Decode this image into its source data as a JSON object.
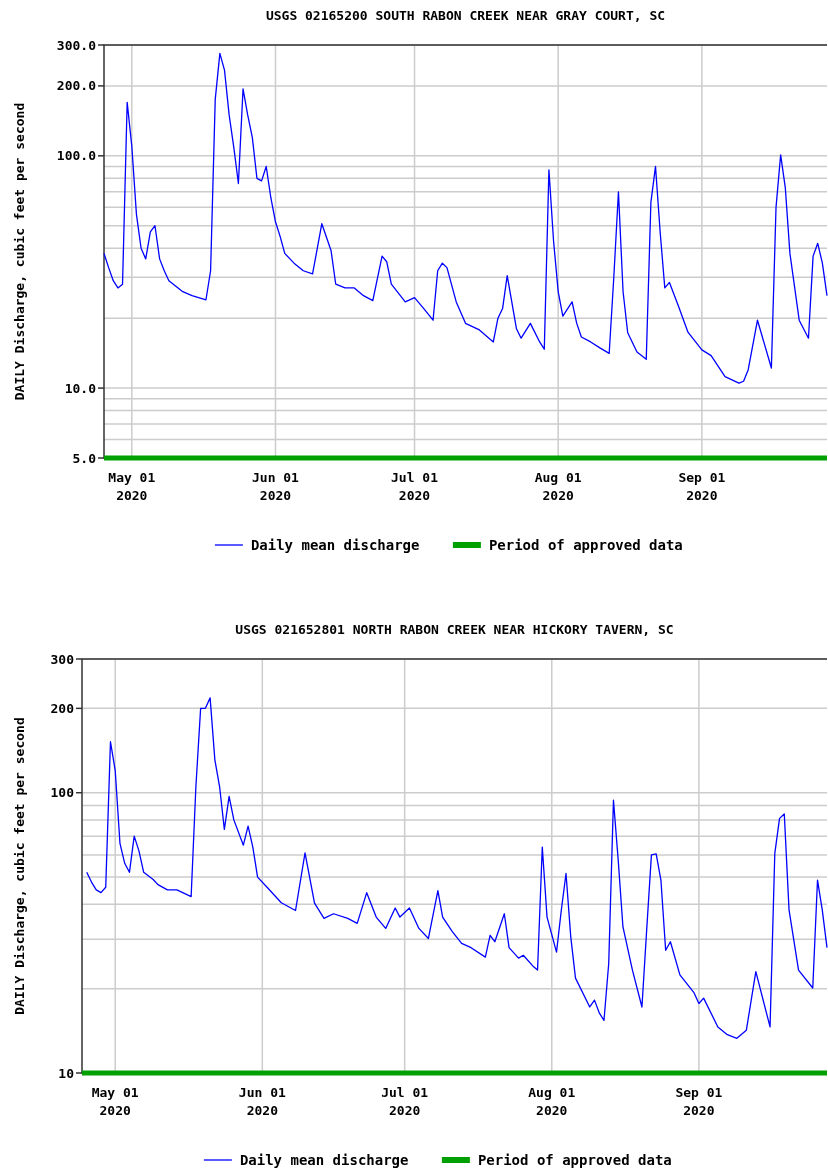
{
  "chart_data": [
    {
      "type": "line",
      "title": "USGS 02165200 SOUTH RABON CREEK NEAR GRAY COURT, SC",
      "ylabel": "DAILY Discharge, cubic feet per second",
      "log": true,
      "grid": true,
      "legend": "bottom",
      "marker": "none",
      "line_style": "solid",
      "xlim": [
        "2020-04-25",
        "2020-09-28"
      ],
      "ylim": [
        5,
        300
      ],
      "xticks": [
        {
          "value": "2020-05-01",
          "label": "May 01\n2020"
        },
        {
          "value": "2020-06-01",
          "label": "Jun 01\n2020"
        },
        {
          "value": "2020-07-01",
          "label": "Jul 01\n2020"
        },
        {
          "value": "2020-08-01",
          "label": "Aug 01\n2020"
        },
        {
          "value": "2020-09-01",
          "label": "Sep 01\n2020"
        }
      ],
      "yticks": [
        {
          "value": 5,
          "label": "5.0"
        },
        {
          "value": 6,
          "label": null
        },
        {
          "value": 7,
          "label": null
        },
        {
          "value": 8,
          "label": null
        },
        {
          "value": 9,
          "label": null
        },
        {
          "value": 10,
          "label": "10.0"
        },
        {
          "value": 20,
          "label": null
        },
        {
          "value": 30,
          "label": null
        },
        {
          "value": 40,
          "label": null
        },
        {
          "value": 50,
          "label": null
        },
        {
          "value": 60,
          "label": null
        },
        {
          "value": 70,
          "label": null
        },
        {
          "value": 80,
          "label": null
        },
        {
          "value": 90,
          "label": null
        },
        {
          "value": 100,
          "label": "100.0"
        },
        {
          "value": 200,
          "label": "200.0"
        },
        {
          "value": 300,
          "label": "300.0"
        }
      ],
      "ref_lines": [
        {
          "axis": "y",
          "value": 5,
          "label": "Period of approved data",
          "color": "#00a000"
        }
      ],
      "series": [
        {
          "name": "Daily mean discharge",
          "color": "#0000ff",
          "x": [
            "2020-04-25",
            "2020-04-26",
            "2020-04-27",
            "2020-04-28",
            "2020-04-29",
            "2020-04-30",
            "2020-05-01",
            "2020-05-02",
            "2020-05-03",
            "2020-05-04",
            "2020-05-05",
            "2020-05-06",
            "2020-05-07",
            "2020-05-08",
            "2020-05-09",
            "2020-05-12",
            "2020-05-14",
            "2020-05-17",
            "2020-05-18",
            "2020-05-19",
            "2020-05-20",
            "2020-05-21",
            "2020-05-22",
            "2020-05-23",
            "2020-05-24",
            "2020-05-25",
            "2020-05-26",
            "2020-05-27",
            "2020-05-28",
            "2020-05-29",
            "2020-05-30",
            "2020-05-31",
            "2020-06-01",
            "2020-06-02",
            "2020-06-03",
            "2020-06-05",
            "2020-06-07",
            "2020-06-09",
            "2020-06-11",
            "2020-06-13",
            "2020-06-14",
            "2020-06-16",
            "2020-06-18",
            "2020-06-20",
            "2020-06-22",
            "2020-06-24",
            "2020-06-25",
            "2020-06-26",
            "2020-06-29",
            "2020-07-01",
            "2020-07-03",
            "2020-07-05",
            "2020-07-06",
            "2020-07-07",
            "2020-07-08",
            "2020-07-10",
            "2020-07-12",
            "2020-07-15",
            "2020-07-18",
            "2020-07-19",
            "2020-07-20",
            "2020-07-21",
            "2020-07-23",
            "2020-07-24",
            "2020-07-26",
            "2020-07-28",
            "2020-07-29",
            "2020-07-30",
            "2020-07-31",
            "2020-08-01",
            "2020-08-02",
            "2020-08-04",
            "2020-08-05",
            "2020-08-06",
            "2020-08-08",
            "2020-08-10",
            "2020-08-12",
            "2020-08-13",
            "2020-08-14",
            "2020-08-15",
            "2020-08-16",
            "2020-08-18",
            "2020-08-20",
            "2020-08-21",
            "2020-08-22",
            "2020-08-23",
            "2020-08-24",
            "2020-08-25",
            "2020-08-27",
            "2020-08-29",
            "2020-09-01",
            "2020-09-03",
            "2020-09-06",
            "2020-09-09",
            "2020-09-10",
            "2020-09-11",
            "2020-09-13",
            "2020-09-16",
            "2020-09-17",
            "2020-09-18",
            "2020-09-19",
            "2020-09-20",
            "2020-09-22",
            "2020-09-24",
            "2020-09-25",
            "2020-09-26",
            "2020-09-27",
            "2020-09-28"
          ],
          "values": [
            38,
            33,
            29,
            27,
            28,
            170,
            110,
            56,
            40,
            36,
            47,
            50,
            36,
            32,
            29,
            26,
            25,
            24,
            32,
            175,
            276,
            234,
            150,
            109,
            76,
            194,
            150,
            120,
            80,
            78,
            90,
            66,
            52,
            45,
            38,
            34.5,
            32,
            31,
            51,
            39,
            28,
            27,
            27,
            25,
            23.8,
            37,
            35,
            28,
            23.5,
            24.5,
            22,
            19.6,
            32,
            34.5,
            33,
            23.5,
            19,
            17.8,
            15.8,
            20,
            22,
            30.5,
            18,
            16.4,
            19,
            15.8,
            14.7,
            87,
            43,
            26,
            20.4,
            23.5,
            19,
            16.6,
            15.8,
            14.9,
            14.1,
            30,
            70,
            26,
            17.3,
            14.3,
            13.3,
            63,
            90,
            47,
            27,
            28.5,
            22.4,
            17.4,
            14.6,
            13.8,
            11.2,
            10.5,
            10.7,
            12,
            19.6,
            12.2,
            60,
            101,
            73,
            38,
            19.6,
            16.4,
            37,
            42,
            34.5,
            25
          ]
        }
      ]
    },
    {
      "type": "line",
      "title": "USGS 021652801 NORTH RABON CREEK NEAR HICKORY TAVERN, SC",
      "ylabel": "DAILY Discharge, cubic feet per second",
      "log": true,
      "grid": true,
      "legend": "bottom",
      "marker": "none",
      "line_style": "solid",
      "xlim": [
        "2020-04-24",
        "2020-09-28"
      ],
      "ylim": [
        10,
        300
      ],
      "xticks": [
        {
          "value": "2020-05-01",
          "label": "May 01\n2020"
        },
        {
          "value": "2020-06-01",
          "label": "Jun 01\n2020"
        },
        {
          "value": "2020-07-01",
          "label": "Jul 01\n2020"
        },
        {
          "value": "2020-08-01",
          "label": "Aug 01\n2020"
        },
        {
          "value": "2020-09-01",
          "label": "Sep 01\n2020"
        }
      ],
      "yticks": [
        10,
        {
          "value": 20,
          "label": null
        },
        {
          "value": 30,
          "label": null
        },
        {
          "value": 40,
          "label": null
        },
        {
          "value": 50,
          "label": null
        },
        {
          "value": 60,
          "label": null
        },
        {
          "value": 70,
          "label": null
        },
        {
          "value": 80,
          "label": null
        },
        {
          "value": 90,
          "label": null
        },
        100,
        200,
        300
      ],
      "ref_lines": [
        {
          "axis": "y",
          "value": 10,
          "label": "Period of approved data",
          "color": "#00a000"
        }
      ],
      "series": [
        {
          "name": "Daily mean discharge",
          "color": "#0000ff",
          "x": [
            "2020-04-25",
            "2020-04-26",
            "2020-04-27",
            "2020-04-28",
            "2020-04-29",
            "2020-04-30",
            "2020-05-01",
            "2020-05-02",
            "2020-05-03",
            "2020-05-04",
            "2020-05-05",
            "2020-05-06",
            "2020-05-07",
            "2020-05-09",
            "2020-05-10",
            "2020-05-12",
            "2020-05-14",
            "2020-05-17",
            "2020-05-18",
            "2020-05-19",
            "2020-05-20",
            "2020-05-21",
            "2020-05-22",
            "2020-05-23",
            "2020-05-24",
            "2020-05-25",
            "2020-05-26",
            "2020-05-28",
            "2020-05-29",
            "2020-05-30",
            "2020-05-31",
            "2020-06-02",
            "2020-06-05",
            "2020-06-08",
            "2020-06-10",
            "2020-06-12",
            "2020-06-14",
            "2020-06-16",
            "2020-06-19",
            "2020-06-21",
            "2020-06-23",
            "2020-06-25",
            "2020-06-27",
            "2020-06-29",
            "2020-06-30",
            "2020-07-02",
            "2020-07-04",
            "2020-07-06",
            "2020-07-08",
            "2020-07-09",
            "2020-07-11",
            "2020-07-13",
            "2020-07-15",
            "2020-07-18",
            "2020-07-19",
            "2020-07-20",
            "2020-07-22",
            "2020-07-23",
            "2020-07-25",
            "2020-07-26",
            "2020-07-28",
            "2020-07-29",
            "2020-07-30",
            "2020-07-31",
            "2020-08-02",
            "2020-08-03",
            "2020-08-04",
            "2020-08-05",
            "2020-08-06",
            "2020-08-09",
            "2020-08-10",
            "2020-08-11",
            "2020-08-12",
            "2020-08-13",
            "2020-08-14",
            "2020-08-15",
            "2020-08-16",
            "2020-08-18",
            "2020-08-20",
            "2020-08-21",
            "2020-08-22",
            "2020-08-23",
            "2020-08-24",
            "2020-08-25",
            "2020-08-26",
            "2020-08-28",
            "2020-08-31",
            "2020-09-01",
            "2020-09-02",
            "2020-09-05",
            "2020-09-07",
            "2020-09-09",
            "2020-09-11",
            "2020-09-13",
            "2020-09-16",
            "2020-09-17",
            "2020-09-18",
            "2020-09-19",
            "2020-09-20",
            "2020-09-22",
            "2020-09-25",
            "2020-09-26",
            "2020-09-27",
            "2020-09-28"
          ],
          "values": [
            52,
            48,
            45,
            44,
            46,
            152,
            120,
            66,
            56,
            52,
            70,
            62,
            52,
            49,
            47,
            45,
            45,
            42.6,
            105,
            200,
            200,
            218,
            131,
            105,
            74,
            97,
            80,
            65,
            76,
            64,
            50,
            46,
            40.5,
            38,
            61,
            40.4,
            35.6,
            37,
            35.6,
            34.2,
            44,
            36,
            32.8,
            38.8,
            36,
            38.8,
            32.8,
            30.2,
            44.7,
            36,
            32,
            29,
            28,
            25.9,
            31,
            29.4,
            37,
            28,
            25.7,
            26.3,
            24.1,
            23.3,
            64,
            36,
            27,
            38,
            51.5,
            30.6,
            21.8,
            17.2,
            18.2,
            16.4,
            15.4,
            24.6,
            94,
            57.5,
            33.2,
            23.3,
            17.2,
            32.4,
            60,
            60.5,
            48.8,
            27.4,
            29.4,
            22.4,
            19.3,
            17.7,
            18.5,
            14.6,
            13.7,
            13.3,
            14.2,
            23,
            14.6,
            60.8,
            81,
            84,
            38.2,
            23.3,
            20.1,
            48.8,
            38.2,
            28
          ]
        }
      ]
    }
  ]
}
